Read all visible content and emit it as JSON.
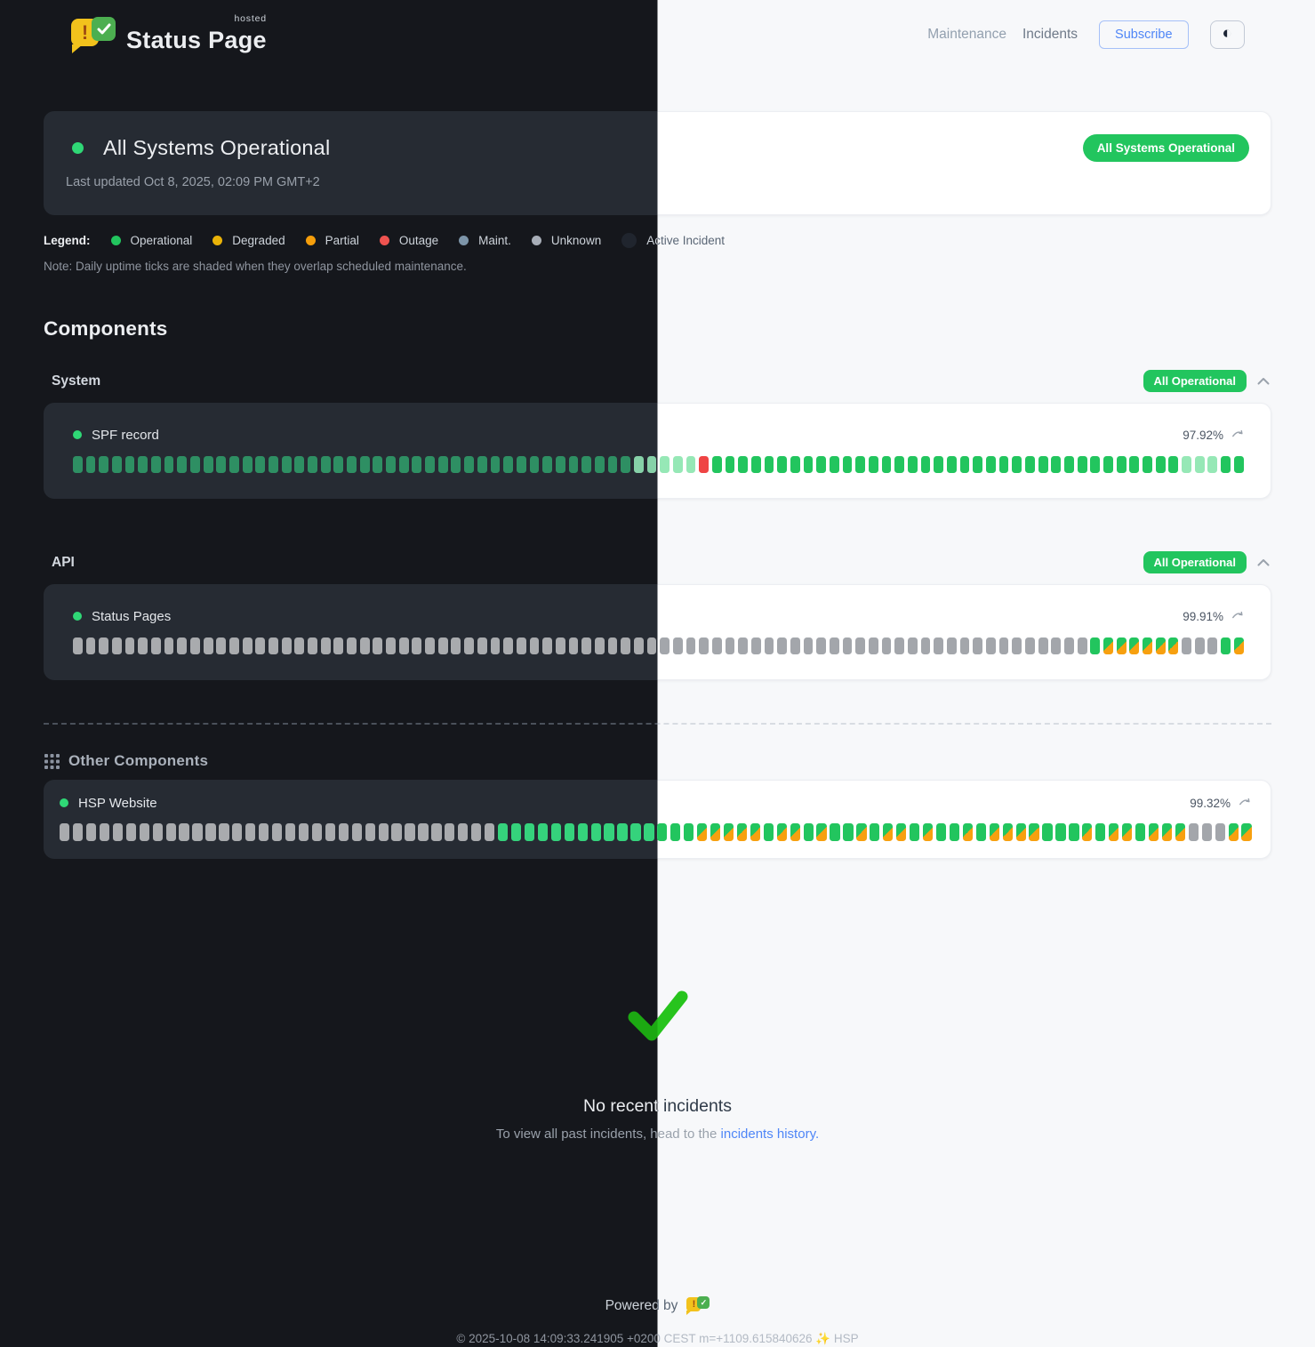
{
  "header": {
    "brand": {
      "wordmark": "Status Page",
      "hosted": "hosted"
    },
    "nav": [
      {
        "label": "Maintenance"
      },
      {
        "label": "Incidents"
      }
    ],
    "subscribe_label": "Subscribe",
    "theme_toggle_icon": "circle-half"
  },
  "banner": {
    "title": "All Systems Operational",
    "last_updated": "Last updated Oct 8, 2025, 02:09 PM GMT+2",
    "badge": "All Systems Operational",
    "badge_color": "#22c55e"
  },
  "legend": {
    "label": "Legend:",
    "items": [
      {
        "label": "Operational",
        "color": "#22c55e"
      },
      {
        "label": "Degraded",
        "color": "#eab308"
      },
      {
        "label": "Partial",
        "color": "#f59e0b"
      },
      {
        "label": "Outage",
        "color": "#ef5350"
      },
      {
        "label": "Maint.",
        "color": "#7d95a9"
      },
      {
        "label": "Unknown",
        "color": "#a8aeb8"
      },
      {
        "label": "Active Incident",
        "color": "#111827"
      }
    ],
    "note": "Note: Daily uptime ticks are shaded when they overlap scheduled maintenance."
  },
  "components": {
    "heading": "Components",
    "groups": [
      {
        "name": "System",
        "badge": "All Operational",
        "items": [
          {
            "name": "SPF record",
            "uptime": "97.92%",
            "ticks": [
              [
                "operational",
                43
              ],
              [
                "operational_faded",
                5
              ],
              [
                "outage",
                1
              ],
              [
                "operational",
                36
              ],
              [
                "operational_faded",
                3
              ],
              [
                "operational",
                2
              ]
            ]
          }
        ]
      },
      {
        "name": "API",
        "badge": "All Operational",
        "items": [
          {
            "name": "Status Pages",
            "uptime": "99.91%",
            "ticks": [
              [
                "unknown",
                78
              ],
              [
                "operational_bright",
                1
              ],
              [
                "maintenance_overlap",
                6
              ],
              [
                "unknown",
                3
              ],
              [
                "operational_bright",
                1
              ],
              [
                "maintenance_overlap",
                1
              ]
            ]
          }
        ]
      }
    ],
    "other": {
      "heading": "Other Components",
      "items": [
        {
          "name": "HSP Website",
          "uptime": "99.32%",
          "ticks": [
            [
              "unknown",
              33
            ],
            [
              "operational_bright",
              15
            ],
            [
              "maintenance_overlap",
              5
            ],
            [
              "operational_bright",
              1
            ],
            [
              "maintenance_overlap",
              2
            ],
            [
              "operational_bright",
              1
            ],
            [
              "maintenance_overlap",
              1
            ],
            [
              "operational_bright",
              2
            ],
            [
              "maintenance_overlap",
              1
            ],
            [
              "operational_bright",
              1
            ],
            [
              "maintenance_overlap",
              2
            ],
            [
              "operational_bright",
              1
            ],
            [
              "maintenance_overlap",
              1
            ],
            [
              "operational_bright",
              2
            ],
            [
              "maintenance_overlap",
              1
            ],
            [
              "operational_bright",
              1
            ],
            [
              "maintenance_overlap",
              2
            ],
            [
              "maintenance_overlap",
              2
            ],
            [
              "operational_bright",
              3
            ],
            [
              "maintenance_overlap",
              1
            ],
            [
              "operational_bright",
              1
            ],
            [
              "maintenance_overlap",
              2
            ],
            [
              "operational_bright",
              1
            ],
            [
              "maintenance_overlap",
              3
            ],
            [
              "unknown",
              3
            ],
            [
              "maintenance_overlap",
              2
            ]
          ]
        }
      ]
    }
  },
  "incidents_empty": {
    "title": "No recent incidents",
    "subtitle_prefix": "To view all past incidents, head to the ",
    "link_text": "incidents history."
  },
  "footer": {
    "powered_by": "Powered by",
    "copyright": "© 2025-10-08 14:09:33.241905 +0200 CEST m=+1109.615840626 ✨ HSP"
  }
}
